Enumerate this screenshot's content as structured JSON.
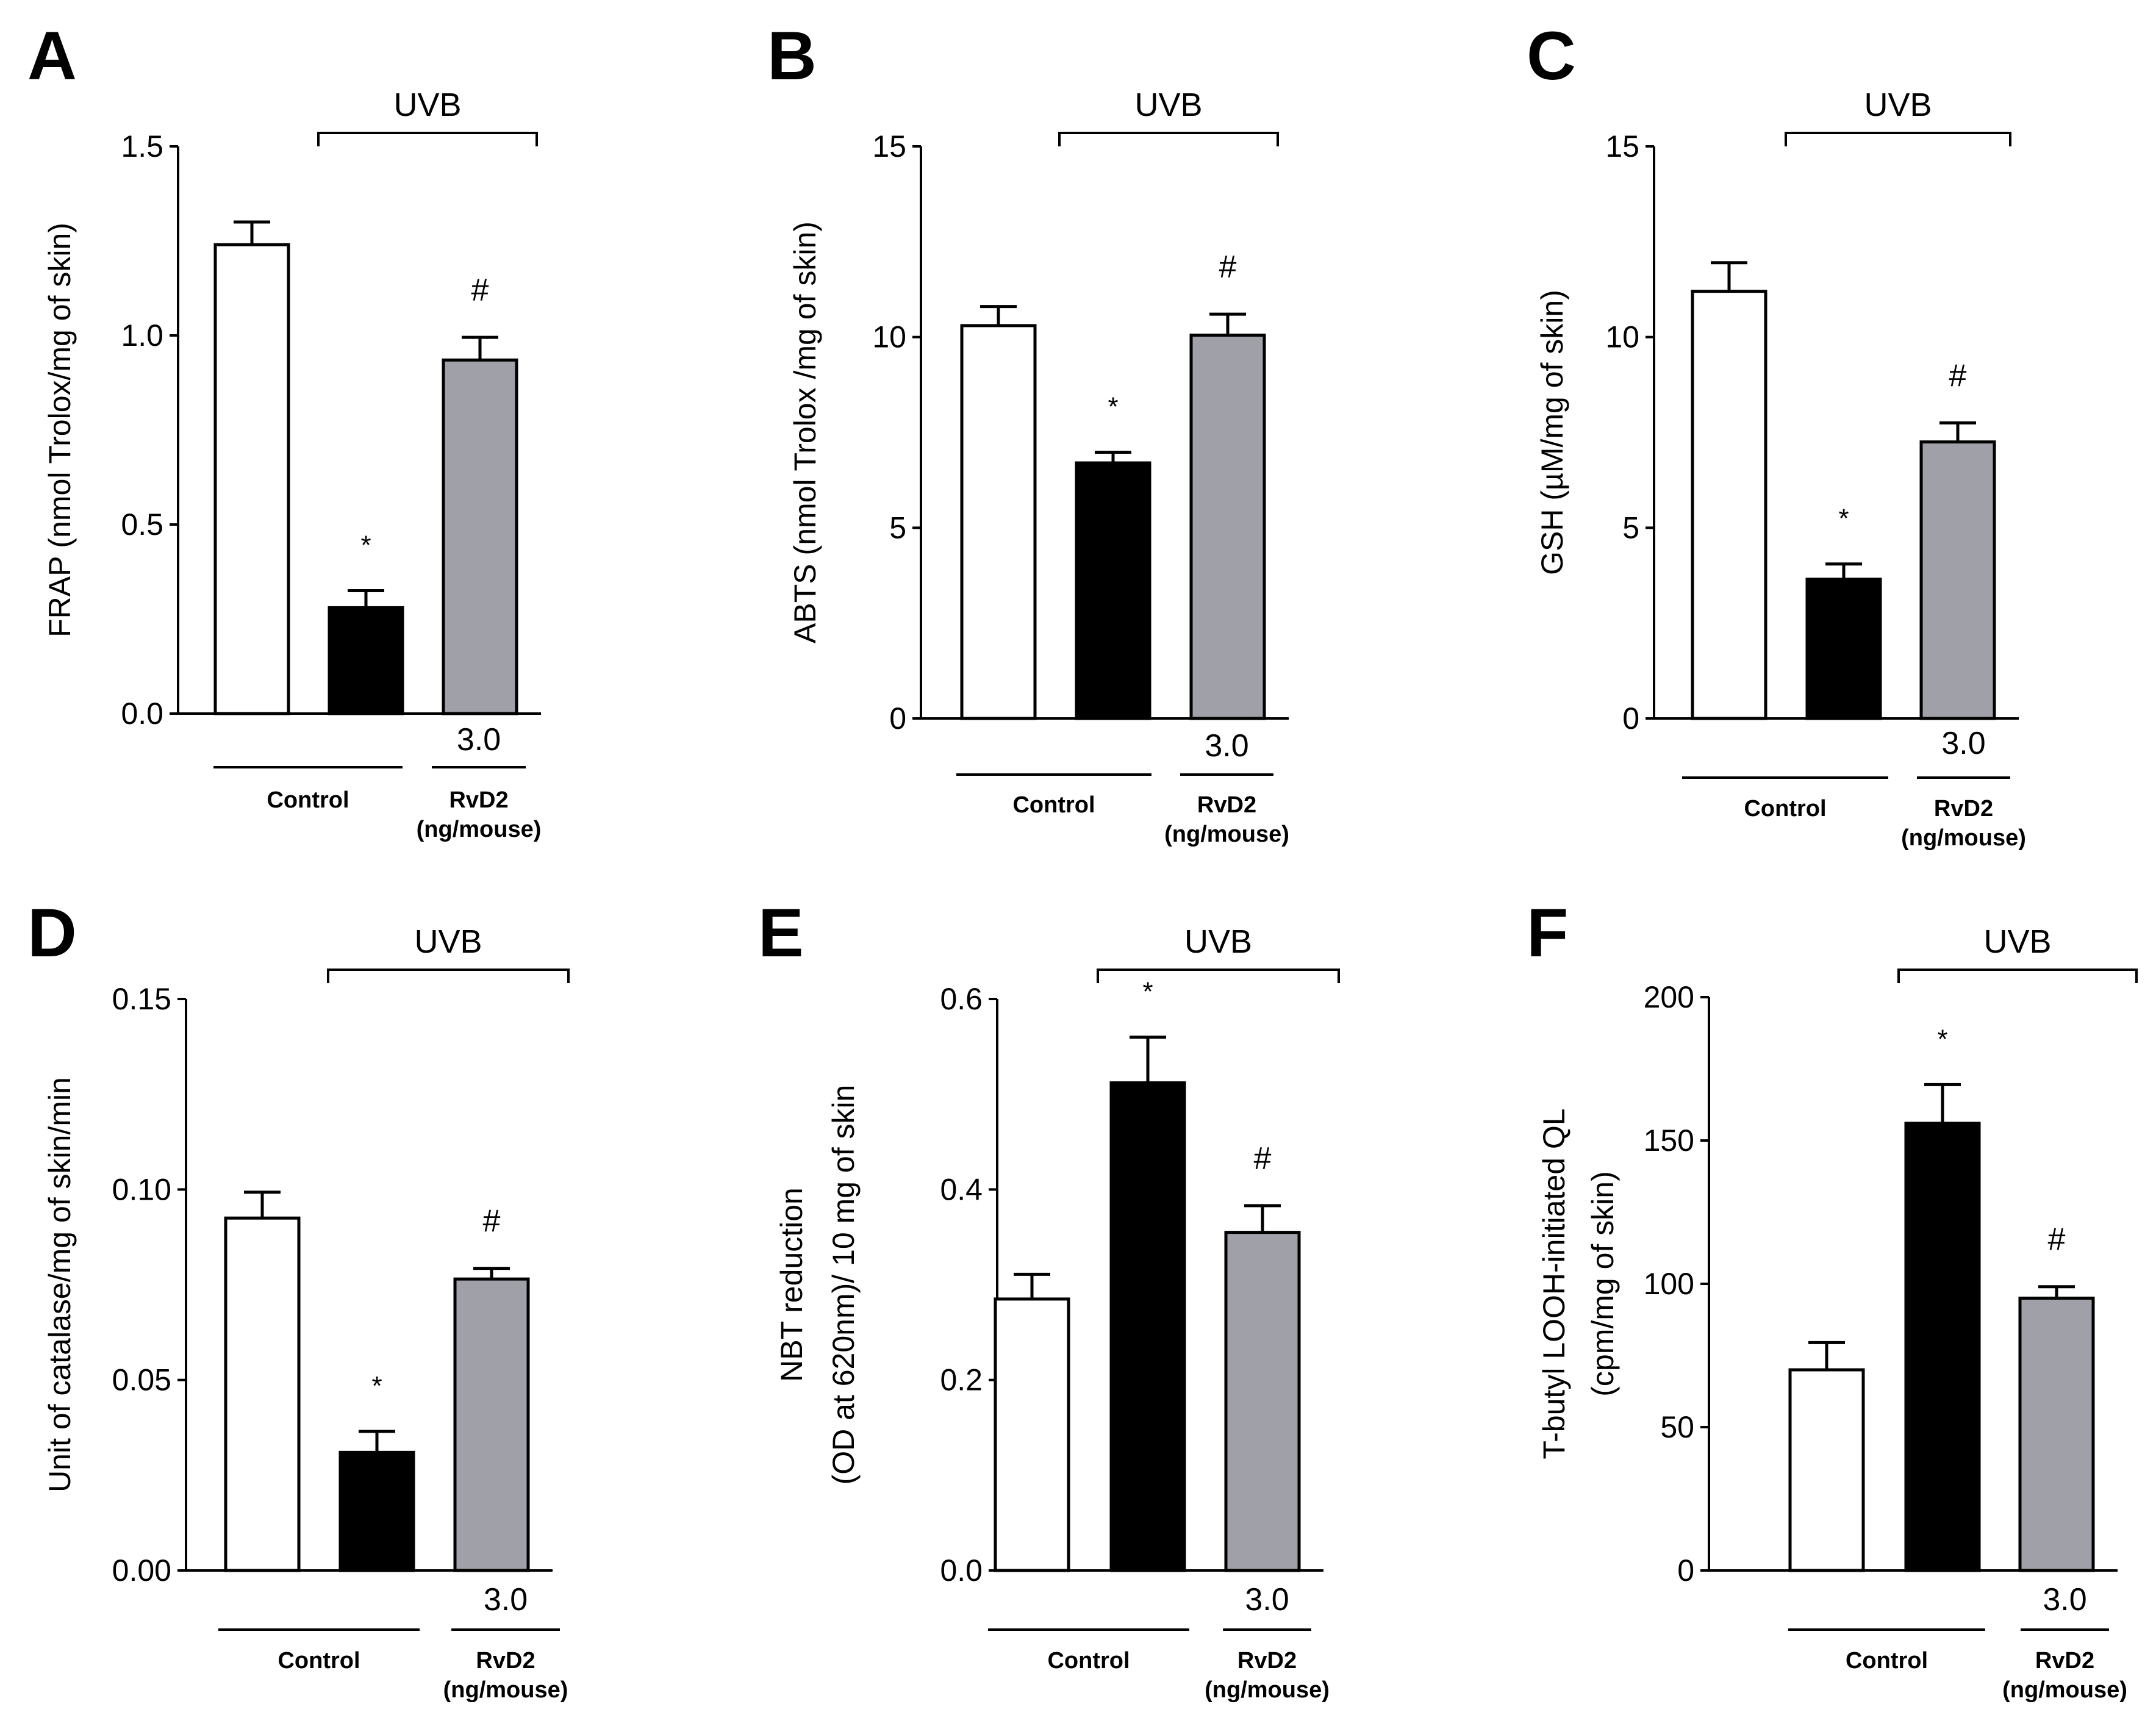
{
  "chart_data": [
    {
      "type": "bar",
      "panel": "A",
      "ylabel": "FRAP (nmol Trolox/mg of skin)",
      "ylim": [
        0,
        1.5
      ],
      "ticks": [
        0,
        0.5,
        1.0,
        1.5
      ],
      "tick_labels": [
        "0.0",
        "0.5",
        "1.0",
        "1.5"
      ],
      "bracket_label": "UVB",
      "categories": [
        "Control",
        "UVB",
        "UVB + RvD2 3.0"
      ],
      "values": [
        1.24,
        0.28,
        0.935
      ],
      "errors": [
        0.06,
        0.045,
        0.06
      ],
      "colors": [
        "#ffffff",
        "#000000",
        "#a0a0a8"
      ],
      "significance": [
        "",
        "*",
        "#"
      ],
      "dose_label": "3.0",
      "control_label": "Control",
      "treatment_label": [
        "RvD2",
        "(ng/mouse)"
      ]
    },
    {
      "type": "bar",
      "panel": "B",
      "ylabel": "ABTS (nmol Trolox /mg of skin)",
      "ylim": [
        0,
        15
      ],
      "ticks": [
        0,
        5,
        10,
        15
      ],
      "tick_labels": [
        "0",
        "5",
        "10",
        "15"
      ],
      "bracket_label": "UVB",
      "categories": [
        "Control",
        "UVB",
        "UVB + RvD2 3.0"
      ],
      "values": [
        10.3,
        6.7,
        10.05
      ],
      "errors": [
        0.5,
        0.28,
        0.55
      ],
      "colors": [
        "#ffffff",
        "#000000",
        "#a0a0a8"
      ],
      "significance": [
        "",
        "*",
        "#"
      ],
      "dose_label": "3.0",
      "control_label": "Control",
      "treatment_label": [
        "RvD2",
        "(ng/mouse)"
      ]
    },
    {
      "type": "bar",
      "panel": "C",
      "ylabel": "GSH (µM/mg of skin)",
      "ylim": [
        0,
        15
      ],
      "ticks": [
        0,
        5,
        10,
        15
      ],
      "tick_labels": [
        "0",
        "5",
        "10",
        "15"
      ],
      "bracket_label": "UVB",
      "categories": [
        "Control",
        "UVB",
        "UVB + RvD2 3.0"
      ],
      "values": [
        11.2,
        3.65,
        7.25
      ],
      "errors": [
        0.75,
        0.4,
        0.5
      ],
      "colors": [
        "#ffffff",
        "#000000",
        "#a0a0a8"
      ],
      "significance": [
        "",
        "*",
        "#"
      ],
      "dose_label": "3.0",
      "control_label": "Control",
      "treatment_label": [
        "RvD2",
        "(ng/mouse)"
      ]
    },
    {
      "type": "bar",
      "panel": "D",
      "ylabel": "Unit of catalase/mg of skin/min",
      "ylim": [
        0,
        0.15
      ],
      "ticks": [
        0,
        0.05,
        0.1,
        0.15
      ],
      "tick_labels": [
        "0.00",
        "0.05",
        "0.10",
        "0.15"
      ],
      "bracket_label": "UVB",
      "categories": [
        "Control",
        "UVB",
        "UVB + RvD2 3.0"
      ],
      "values": [
        0.0925,
        0.031,
        0.0765
      ],
      "errors": [
        0.0068,
        0.0055,
        0.0028
      ],
      "colors": [
        "#ffffff",
        "#000000",
        "#a0a0a8"
      ],
      "significance": [
        "",
        "*",
        "#"
      ],
      "dose_label": "3.0",
      "control_label": "Control",
      "treatment_label": [
        "RvD2",
        "(ng/mouse)"
      ]
    },
    {
      "type": "bar",
      "panel": "E",
      "ylabel": [
        "NBT reduction",
        "(OD at 620nm)/ 10 mg of skin"
      ],
      "ylim": [
        0,
        0.6
      ],
      "ticks": [
        0,
        0.2,
        0.4,
        0.6
      ],
      "tick_labels": [
        "0.0",
        "0.2",
        "0.4",
        "0.6"
      ],
      "bracket_label": "UVB",
      "categories": [
        "Control",
        "UVB",
        "UVB + RvD2 3.0"
      ],
      "values": [
        0.285,
        0.512,
        0.355
      ],
      "errors": [
        0.026,
        0.048,
        0.028
      ],
      "colors": [
        "#ffffff",
        "#000000",
        "#a0a0a8"
      ],
      "significance": [
        "",
        "*",
        "#"
      ],
      "dose_label": "3.0",
      "control_label": "Control",
      "treatment_label": [
        "RvD2",
        "(ng/mouse)"
      ]
    },
    {
      "type": "bar",
      "panel": "F",
      "ylabel": [
        "T-butyl LOOH-initiated QL",
        "(cpm/mg of skin)"
      ],
      "ylim": [
        0,
        200
      ],
      "ticks": [
        0,
        50,
        100,
        150,
        200
      ],
      "tick_labels": [
        "0",
        "50",
        "100",
        "150",
        "200"
      ],
      "bracket_label": "UVB",
      "categories": [
        "Control",
        "UVB",
        "UVB + RvD2 3.0"
      ],
      "values": [
        70,
        156,
        95
      ],
      "errors": [
        9.5,
        13.5,
        4
      ],
      "colors": [
        "#ffffff",
        "#000000",
        "#a0a0a8"
      ],
      "significance": [
        "",
        "*",
        "#"
      ],
      "dose_label": "3.0",
      "control_label": "Control",
      "treatment_label": [
        "RvD2",
        "(ng/mouse)"
      ]
    }
  ]
}
